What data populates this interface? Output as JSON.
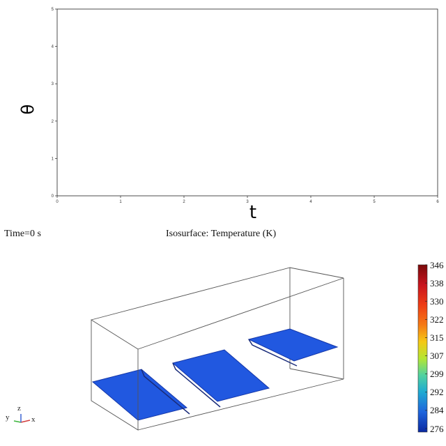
{
  "chart_data": [
    {
      "type": "line",
      "xlabel": "t",
      "ylabel": "θ",
      "xlim": [
        0,
        6
      ],
      "ylim": [
        0,
        5
      ],
      "x_ticks": [
        0,
        1,
        2,
        3,
        4,
        5,
        6
      ],
      "y_ticks": [
        0,
        1,
        2,
        3,
        4,
        5
      ],
      "series": [],
      "grid": false
    }
  ],
  "simulation": {
    "time_label": "Time=0 s",
    "title": "Isosurface: Temperature (K)",
    "colorbar": {
      "ticks": [
        "346",
        "338",
        "330",
        "322",
        "315",
        "307",
        "299",
        "292",
        "284",
        "276"
      ],
      "colors": [
        "#7a0a0a",
        "#c8141e",
        "#ee3c14",
        "#f57a14",
        "#f5c814",
        "#b4e632",
        "#50d2a0",
        "#1eaad2",
        "#1e64dc",
        "#0a28a0"
      ]
    },
    "isosurface_color": "#2158e0",
    "axes_triad": {
      "x": "x",
      "y": "y",
      "z": "z",
      "colors": {
        "x": "#d23c3c",
        "y": "#3cb43c",
        "z": "#3c64d2"
      }
    }
  }
}
